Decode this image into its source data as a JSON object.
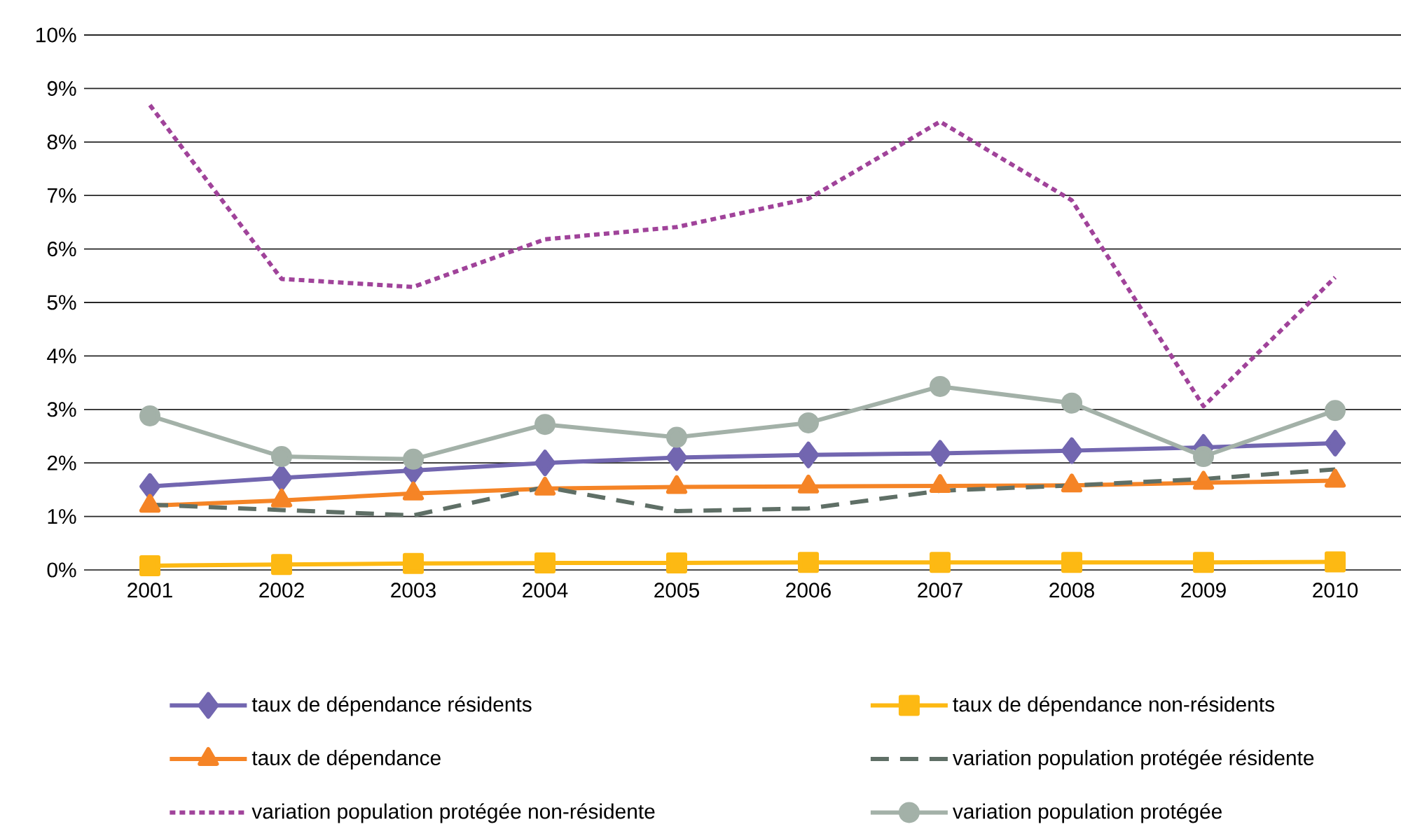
{
  "chart_data": {
    "type": "line",
    "categories": [
      "2001",
      "2002",
      "2003",
      "2004",
      "2005",
      "2006",
      "2007",
      "2008",
      "2009",
      "2010"
    ],
    "series": [
      {
        "name": "taux de dépendance résidents",
        "color": "#7266b0",
        "marker": "diamond",
        "line_style": "solid",
        "values": [
          1.56,
          1.72,
          1.86,
          2.0,
          2.1,
          2.15,
          2.18,
          2.23,
          2.29,
          2.37
        ]
      },
      {
        "name": "taux de dépendance non-résidents",
        "color": "#fdb913",
        "marker": "square",
        "line_style": "solid",
        "values": [
          0.08,
          0.1,
          0.12,
          0.13,
          0.13,
          0.14,
          0.14,
          0.14,
          0.14,
          0.15
        ]
      },
      {
        "name": "taux de dépendance",
        "color": "#f58426",
        "marker": "triangle",
        "line_style": "solid",
        "values": [
          1.2,
          1.3,
          1.43,
          1.52,
          1.55,
          1.56,
          1.57,
          1.58,
          1.63,
          1.67
        ]
      },
      {
        "name": "variation population protégée résidente",
        "color": "#5f6f66",
        "marker": "none",
        "line_style": "dashed",
        "values": [
          1.22,
          1.12,
          1.02,
          1.55,
          1.1,
          1.15,
          1.48,
          1.58,
          1.7,
          1.88
        ]
      },
      {
        "name": "variation population protégée non-résidente",
        "color": "#a0439a",
        "marker": "none",
        "line_style": "dotted",
        "values": [
          8.69,
          5.44,
          5.29,
          6.18,
          6.41,
          6.94,
          8.38,
          6.91,
          3.06,
          5.47
        ]
      },
      {
        "name": "variation population protégée",
        "color": "#a3b1a8",
        "marker": "circle",
        "line_style": "solid",
        "values": [
          2.88,
          2.12,
          2.07,
          2.72,
          2.48,
          2.75,
          3.43,
          3.12,
          2.12,
          2.98
        ]
      }
    ],
    "ylim": [
      0,
      10
    ],
    "yticks": [
      {
        "value": 0,
        "label": "0%"
      },
      {
        "value": 1,
        "label": "1%"
      },
      {
        "value": 2,
        "label": "2%"
      },
      {
        "value": 3,
        "label": "3%"
      },
      {
        "value": 4,
        "label": "4%"
      },
      {
        "value": 5,
        "label": "5%"
      },
      {
        "value": 6,
        "label": "6%"
      },
      {
        "value": 7,
        "label": "7%"
      },
      {
        "value": 8,
        "label": "8%"
      },
      {
        "value": 9,
        "label": "9%"
      },
      {
        "value": 10,
        "label": "10%"
      }
    ],
    "grid": "y",
    "legend": "bottom"
  }
}
